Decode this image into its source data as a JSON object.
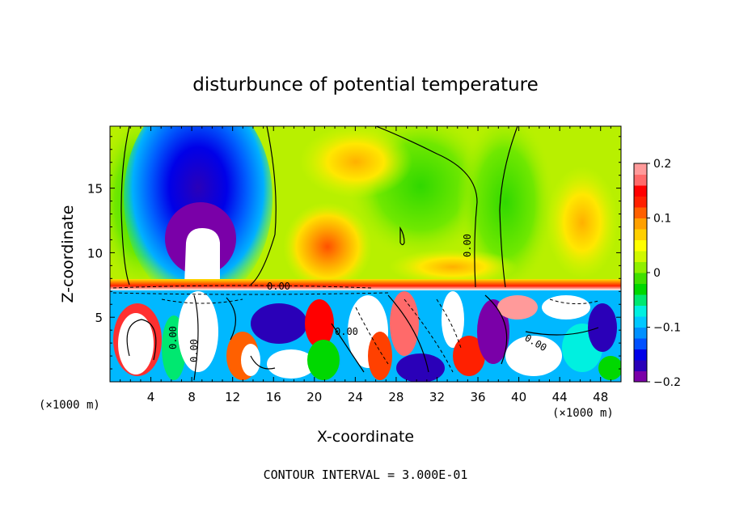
{
  "chart_data": {
    "type": "heatmap",
    "title": "disturbunce of potential temperature",
    "xlabel": "X-coordinate",
    "ylabel": "Z-coordinate",
    "x_unit_left": "(×1000 m)",
    "x_unit_right": "(×1000 m)",
    "xlim": [
      0,
      50
    ],
    "ylim": [
      0,
      19.8
    ],
    "x_ticks": [
      "4",
      "8",
      "12",
      "16",
      "20",
      "24",
      "28",
      "32",
      "36",
      "40",
      "44",
      "48"
    ],
    "y_ticks": [
      "5",
      "10",
      "15"
    ],
    "x_tick_values": [
      4,
      8,
      12,
      16,
      20,
      24,
      28,
      32,
      36,
      40,
      44,
      48
    ],
    "y_tick_values": [
      5,
      10,
      15
    ],
    "colorbar": {
      "range": [
        -0.2,
        0.2
      ],
      "tick_values": [
        -0.2,
        -0.1,
        0,
        0.1,
        0.2
      ],
      "tick_labels": [
        "−0.2",
        "−0.1",
        "0",
        "0.1",
        "0.2"
      ],
      "colors": [
        "#7a00a8",
        "#2a00b8",
        "#0000e8",
        "#0050ff",
        "#0090ff",
        "#00c8ff",
        "#00f0e0",
        "#00e870",
        "#00d800",
        "#40e000",
        "#90f000",
        "#d0f800",
        "#ffff00",
        "#ffd000",
        "#ffa000",
        "#ff6000",
        "#ff2000",
        "#ff0000",
        "#ff6a6a",
        "#ff9a9a"
      ]
    },
    "contour_labels": [
      "0.00",
      "0.00",
      "0.00",
      "0.00",
      "0.00",
      "0.00"
    ],
    "contour_interval_text": "CONTOUR INTERVAL = 3.000E-01"
  }
}
